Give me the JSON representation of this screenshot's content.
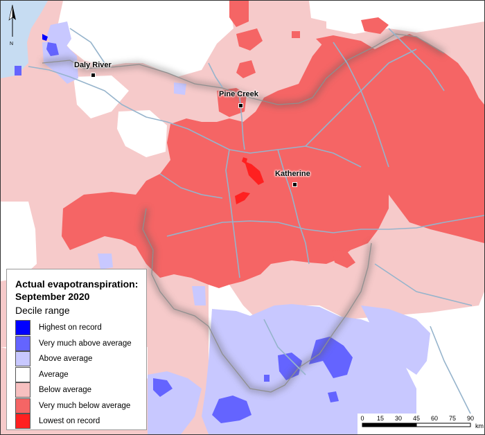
{
  "legend": {
    "title": "Actual evapotranspiration: September 2020",
    "subtitle": "Decile range",
    "items": [
      {
        "label": "Highest on record",
        "color": "#0000ff"
      },
      {
        "label": "Very much above average",
        "color": "#6464ff"
      },
      {
        "label": "Above average",
        "color": "#c8c8ff"
      },
      {
        "label": "Average",
        "color": "#ffffff"
      },
      {
        "label": "Below average",
        "color": "#f7c0c0"
      },
      {
        "label": "Very much below average",
        "color": "#f56565"
      },
      {
        "label": "Lowest on record",
        "color": "#ff2020"
      }
    ]
  },
  "towns": {
    "daly_river": "Daly River",
    "pine_creek": "Pine Creek",
    "katherine": "Katherine"
  },
  "north": {
    "label": "N",
    "icon": "north-arrow-icon"
  },
  "scale": {
    "ticks": [
      "0",
      "15",
      "30",
      "45",
      "60",
      "75",
      "90"
    ],
    "unit": "km"
  },
  "colors": {
    "sea": "#c6dcf2",
    "river": "#96b4cc",
    "boundary": "#8f8f8f"
  }
}
